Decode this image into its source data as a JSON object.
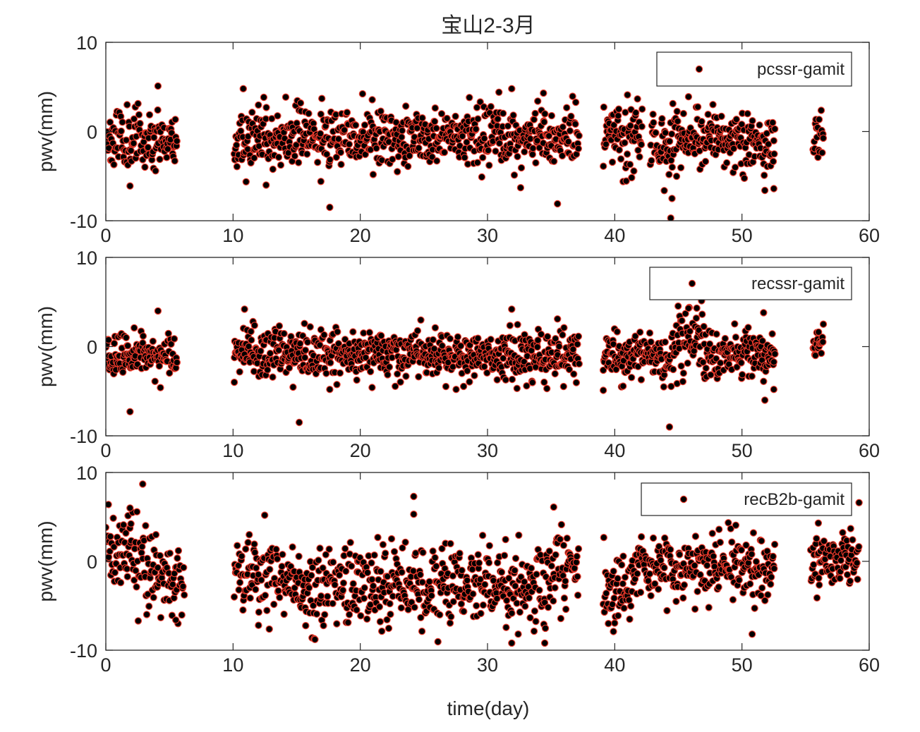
{
  "figure": {
    "title": "宝山2-3月",
    "xlabel": "time(day)",
    "ylabel": "pwv(mm)"
  },
  "colors": {
    "marker_fill": "#000000",
    "marker_edge": "#e8382a",
    "axis": "#262626",
    "background": "#ffffff"
  },
  "chart_data": [
    {
      "type": "scatter",
      "legend": "pcssr-gamit",
      "legend_position": "top-right",
      "ylabel": "pwv(mm)",
      "xlim": [
        0,
        60
      ],
      "ylim": [
        -10,
        10
      ],
      "xticks": [
        0,
        10,
        20,
        30,
        40,
        50,
        60
      ],
      "yticks": [
        -10,
        0,
        10
      ],
      "grid": false,
      "segments": [
        {
          "start": 0.0,
          "end": 5.6,
          "step": 0.042,
          "mean": -0.7,
          "sd": 1.6,
          "seed": 11
        },
        {
          "start": 10.1,
          "end": 37.2,
          "step": 0.042,
          "mean": -0.7,
          "sd": 1.6,
          "seed": 12
        },
        {
          "start": 39.1,
          "end": 42.2,
          "step": 0.042,
          "mean": -0.8,
          "sd": 1.9,
          "seed": 13
        },
        {
          "start": 42.8,
          "end": 52.6,
          "step": 0.042,
          "mean": -0.8,
          "sd": 1.8,
          "seed": 14
        },
        {
          "start": 55.6,
          "end": 56.4,
          "step": 0.042,
          "mean": -0.4,
          "sd": 1.5,
          "seed": 15
        }
      ],
      "outliers": [
        [
          1.9,
          -6.1
        ],
        [
          4.1,
          5.1
        ],
        [
          10.8,
          4.8
        ],
        [
          12.6,
          -6.0
        ],
        [
          17.6,
          -8.5
        ],
        [
          16.9,
          -5.6
        ],
        [
          31.9,
          4.8
        ],
        [
          30.9,
          4.4
        ],
        [
          32.6,
          -6.3
        ],
        [
          34.4,
          4.3
        ],
        [
          35.5,
          -8.1
        ],
        [
          41.0,
          4.1
        ],
        [
          44.4,
          -9.7
        ],
        [
          44.5,
          -7.5
        ],
        [
          45.8,
          3.9
        ],
        [
          51.8,
          -6.6
        ],
        [
          52.5,
          -6.4
        ]
      ]
    },
    {
      "type": "scatter",
      "legend": "recssr-gamit",
      "legend_position": "top-right",
      "ylabel": "pwv(mm)",
      "xlim": [
        0,
        60
      ],
      "ylim": [
        -10,
        10
      ],
      "xticks": [
        0,
        10,
        20,
        30,
        40,
        50,
        60
      ],
      "yticks": [
        -10,
        0,
        10
      ],
      "grid": false,
      "segments": [
        {
          "start": 0.0,
          "end": 5.6,
          "step": 0.042,
          "mean": -0.9,
          "sd": 1.2,
          "seed": 21
        },
        {
          "start": 10.1,
          "end": 37.2,
          "step": 0.042,
          "mean": -0.9,
          "sd": 1.3,
          "seed": 22
        },
        {
          "start": 39.1,
          "end": 44.6,
          "step": 0.042,
          "mean": -1.2,
          "sd": 1.3,
          "seed": 23
        },
        {
          "start": 44.6,
          "end": 47.0,
          "step": 0.042,
          "mean": 0.5,
          "sd": 1.9,
          "seed": 24
        },
        {
          "start": 47.0,
          "end": 52.6,
          "step": 0.042,
          "mean": -1.0,
          "sd": 1.3,
          "seed": 25
        },
        {
          "start": 55.6,
          "end": 56.4,
          "step": 0.042,
          "mean": 0.8,
          "sd": 0.9,
          "seed": 26
        }
      ],
      "outliers": [
        [
          1.9,
          -7.3
        ],
        [
          4.1,
          4.0
        ],
        [
          10.1,
          -4.0
        ],
        [
          10.9,
          4.2
        ],
        [
          15.2,
          -8.5
        ],
        [
          17.6,
          -4.8
        ],
        [
          31.9,
          4.2
        ],
        [
          35.5,
          3.1
        ],
        [
          39.1,
          -4.9
        ],
        [
          44.3,
          -9.0
        ],
        [
          45.8,
          4.3
        ],
        [
          51.8,
          -6.0
        ],
        [
          51.7,
          3.8
        ],
        [
          52.5,
          -4.8
        ]
      ]
    },
    {
      "type": "scatter",
      "legend": "recB2b-gamit",
      "legend_position": "top-right",
      "ylabel": "pwv(mm)",
      "xlabel": "time(day)",
      "xlim": [
        0,
        60
      ],
      "ylim": [
        -10,
        10
      ],
      "xticks": [
        0,
        10,
        20,
        30,
        40,
        50,
        60
      ],
      "yticks": [
        -10,
        0,
        10
      ],
      "grid": false,
      "segments": [
        {
          "start": 0.0,
          "end": 2.0,
          "step": 0.045,
          "mean": 1.0,
          "sd": 2.0,
          "seed": 31
        },
        {
          "start": 2.0,
          "end": 4.0,
          "step": 0.045,
          "mean": 0.5,
          "sd": 2.6,
          "seed": 32
        },
        {
          "start": 4.0,
          "end": 6.2,
          "step": 0.045,
          "mean": -2.2,
          "sd": 2.0,
          "seed": 33
        },
        {
          "start": 10.1,
          "end": 14.0,
          "step": 0.045,
          "mean": -1.3,
          "sd": 2.5,
          "seed": 34
        },
        {
          "start": 14.0,
          "end": 34.5,
          "step": 0.045,
          "mean": -2.6,
          "sd": 2.1,
          "seed": 35
        },
        {
          "start": 34.5,
          "end": 37.2,
          "step": 0.045,
          "mean": -0.8,
          "sd": 2.4,
          "seed": 36
        },
        {
          "start": 39.1,
          "end": 41.5,
          "step": 0.045,
          "mean": -2.5,
          "sd": 2.1,
          "seed": 37
        },
        {
          "start": 41.5,
          "end": 52.6,
          "step": 0.045,
          "mean": -0.6,
          "sd": 1.8,
          "seed": 38
        },
        {
          "start": 55.4,
          "end": 59.2,
          "step": 0.045,
          "mean": 0.2,
          "sd": 1.6,
          "seed": 39
        }
      ],
      "outliers": [
        [
          2.9,
          8.7
        ],
        [
          0.2,
          6.4
        ],
        [
          1.9,
          6.0
        ],
        [
          5.5,
          -6.6
        ],
        [
          12.0,
          -7.2
        ],
        [
          24.2,
          7.3
        ],
        [
          24.2,
          5.3
        ],
        [
          31.9,
          -9.2
        ],
        [
          34.5,
          -9.2
        ],
        [
          35.2,
          6.1
        ],
        [
          39.5,
          -7.0
        ],
        [
          39.9,
          -7.9
        ],
        [
          50.8,
          -8.2
        ],
        [
          59.2,
          6.6
        ],
        [
          56.0,
          4.3
        ]
      ]
    }
  ]
}
